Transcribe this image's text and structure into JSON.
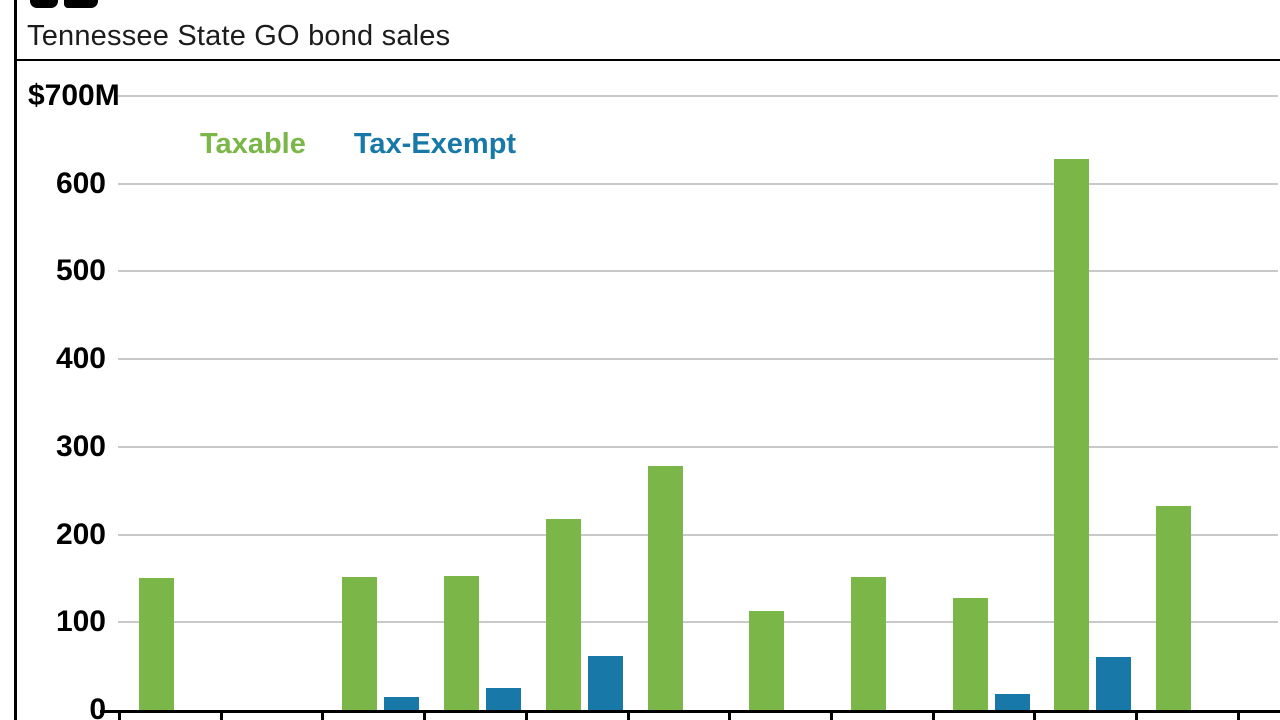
{
  "header": {
    "subtitle": "Tennessee State GO bond sales"
  },
  "legend": {
    "taxable": "Taxable",
    "tax_exempt": "Tax-Exempt"
  },
  "y_axis": {
    "top_label": "$700M",
    "ticks": [
      {
        "value": 700,
        "label": ""
      },
      {
        "value": 600,
        "label": "600"
      },
      {
        "value": 500,
        "label": "500"
      },
      {
        "value": 400,
        "label": "400"
      },
      {
        "value": 300,
        "label": "300"
      },
      {
        "value": 200,
        "label": "200"
      },
      {
        "value": 100,
        "label": "100"
      },
      {
        "value": 0,
        "label": "0"
      }
    ]
  },
  "colors": {
    "taxable": "#7ab648",
    "tax_exempt": "#1878a8",
    "grid": "#c9c9c9",
    "axis": "#000000"
  },
  "chart_data": {
    "type": "bar",
    "title": "Tennessee State GO bond sales",
    "categories": [
      "",
      "",
      "",
      "",
      "",
      "",
      "",
      "",
      "",
      "",
      ""
    ],
    "series": [
      {
        "name": "Taxable",
        "color": "#7ab648",
        "values": [
          150,
          0,
          152,
          153,
          218,
          278,
          113,
          152,
          128,
          628,
          233
        ]
      },
      {
        "name": "Tax-Exempt",
        "color": "#1878a8",
        "values": [
          0,
          0,
          15,
          25,
          62,
          0,
          0,
          0,
          18,
          60,
          0
        ]
      }
    ],
    "ylim": [
      0,
      700
    ],
    "ytick_interval": 100,
    "grid": true,
    "legend_position": "top-left"
  }
}
